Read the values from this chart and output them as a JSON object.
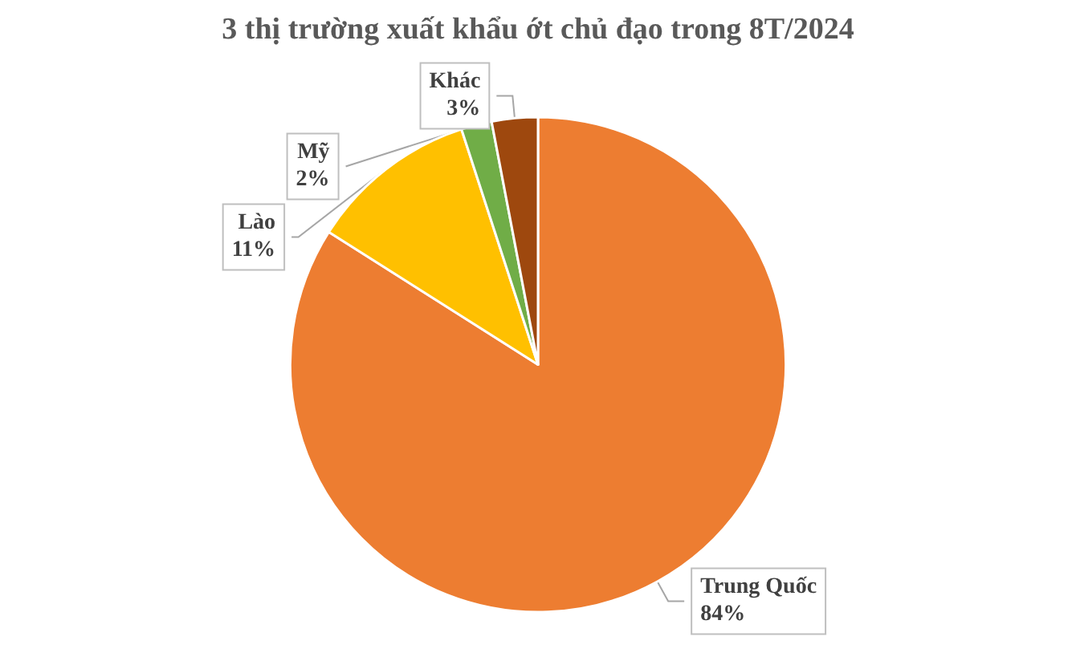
{
  "chart_data": {
    "type": "pie",
    "title": "3 thị trường xuất khẩu ớt chủ đạo trong 8T/2024",
    "categories": [
      "Trung Quốc",
      "Lào",
      "Mỹ",
      "Khác"
    ],
    "values": [
      84,
      11,
      2,
      3
    ],
    "colors": [
      "#ed7d31",
      "#ffc000",
      "#70ad47",
      "#9e480e"
    ],
    "value_labels": [
      "84%",
      "11%",
      "2%",
      "3%"
    ],
    "legend": false
  }
}
